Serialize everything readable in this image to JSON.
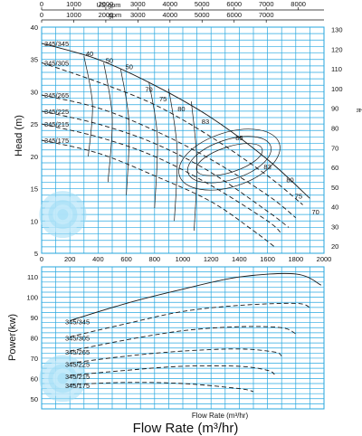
{
  "chart_data": [
    {
      "type": "line",
      "title": "",
      "xlabel": "m³/hr",
      "ylabel": "Head (m)",
      "xlim": [
        0,
        2000
      ],
      "ylim": [
        5,
        40
      ],
      "xticks": [
        0,
        200,
        400,
        600,
        800,
        1000,
        1200,
        1400,
        1600,
        1800,
        2000
      ],
      "yticks": [
        5,
        10,
        15,
        20,
        25,
        30,
        35,
        40
      ],
      "grid": true,
      "top_axis": {
        "label_a": "US.gpm",
        "label_b": "gpm",
        "lim": [
          0,
          8800
        ],
        "ticks_a": [
          0,
          1000,
          2000,
          3000,
          4000,
          5000,
          6000,
          7000,
          8000
        ],
        "ticks_b": [
          0,
          1000,
          2000,
          3000,
          4000,
          5000,
          6000,
          7000
        ]
      },
      "right_axis": {
        "label": "ft",
        "lim": [
          16.4,
          131.2
        ],
        "ticks": [
          20,
          30,
          40,
          50,
          60,
          70,
          80,
          90,
          100,
          110,
          120,
          130
        ]
      },
      "series": [
        {
          "name": "345/345",
          "x": [
            0,
            400,
            800,
            1200,
            1600,
            1900
          ],
          "y": [
            37.5,
            35,
            31,
            26,
            19.5,
            13.5
          ]
        },
        {
          "name": "345/305",
          "x": [
            0,
            400,
            800,
            1200,
            1600,
            1850
          ],
          "y": [
            34.5,
            31.5,
            28,
            23,
            17,
            12.5
          ]
        },
        {
          "name": "345/265",
          "x": [
            0,
            400,
            800,
            1200,
            1600,
            1800
          ],
          "y": [
            29.5,
            27.5,
            24,
            19.5,
            14,
            10.5
          ]
        },
        {
          "name": "345/225",
          "x": [
            0,
            400,
            800,
            1200,
            1600,
            1750
          ],
          "y": [
            27,
            25,
            22,
            17.5,
            11.5,
            9
          ]
        },
        {
          "name": "345/215",
          "x": [
            0,
            400,
            800,
            1200,
            1600,
            1700
          ],
          "y": [
            25,
            23,
            20,
            15.5,
            10,
            8
          ]
        },
        {
          "name": "345/175",
          "x": [
            0,
            400,
            800,
            1200,
            1500,
            1650
          ],
          "y": [
            22.5,
            20.5,
            17,
            13,
            8.5,
            6
          ]
        }
      ],
      "efficiency_labels": [
        "40",
        "50",
        "50",
        "70",
        "75",
        "80",
        "83",
        "85",
        "83",
        "80",
        "75",
        "70"
      ]
    },
    {
      "type": "line",
      "title": "",
      "xlabel": "Flow Rate (m³/hr)",
      "ylabel": "Power(kw)",
      "xlim": [
        0,
        2000
      ],
      "ylim": [
        45,
        115
      ],
      "yticks": [
        50,
        60,
        70,
        80,
        90,
        100,
        110
      ],
      "grid": true,
      "series": [
        {
          "name": "345/345",
          "x": [
            200,
            600,
            1000,
            1400,
            1800,
            1980
          ],
          "y": [
            88.5,
            97,
            104,
            110,
            111.5,
            106
          ]
        },
        {
          "name": "345/305",
          "x": [
            200,
            600,
            1000,
            1400,
            1800,
            1900
          ],
          "y": [
            80.5,
            87,
            93,
            96,
            97,
            95
          ]
        },
        {
          "name": "345/265",
          "x": [
            200,
            600,
            1000,
            1400,
            1700,
            1800
          ],
          "y": [
            73.5,
            79,
            83.5,
            85.5,
            85,
            82
          ]
        },
        {
          "name": "345/225",
          "x": [
            200,
            600,
            1000,
            1400,
            1650,
            1700
          ],
          "y": [
            67.5,
            71,
            73.5,
            74.5,
            73,
            71
          ]
        },
        {
          "name": "345/215",
          "x": [
            200,
            600,
            1000,
            1400,
            1600,
            1650
          ],
          "y": [
            61.5,
            64,
            66,
            66,
            64,
            62
          ]
        },
        {
          "name": "345/175",
          "x": [
            200,
            600,
            1000,
            1400,
            1500
          ],
          "y": [
            57,
            58,
            57.5,
            55,
            53.5
          ]
        }
      ]
    }
  ]
}
